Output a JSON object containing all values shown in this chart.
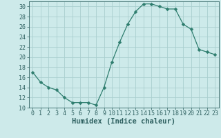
{
  "x": [
    0,
    1,
    2,
    3,
    4,
    5,
    6,
    7,
    8,
    9,
    10,
    11,
    12,
    13,
    14,
    15,
    16,
    17,
    18,
    19,
    20,
    21,
    22,
    23
  ],
  "y": [
    17,
    15,
    14,
    13.5,
    12,
    11,
    11,
    11,
    10.5,
    14,
    19,
    23,
    26.5,
    29,
    30.5,
    30.5,
    30,
    29.5,
    29.5,
    26.5,
    25.5,
    21.5,
    21,
    20.5
  ],
  "line_color": "#2e7d6e",
  "marker": "D",
  "marker_size": 2.5,
  "bg_color": "#cdeaea",
  "grid_color": "#aacfcf",
  "xlabel": "Humidex (Indice chaleur)",
  "xlim": [
    -0.5,
    23.5
  ],
  "ylim": [
    10,
    31
  ],
  "yticks": [
    10,
    12,
    14,
    16,
    18,
    20,
    22,
    24,
    26,
    28,
    30
  ],
  "xticks": [
    0,
    1,
    2,
    3,
    4,
    5,
    6,
    7,
    8,
    9,
    10,
    11,
    12,
    13,
    14,
    15,
    16,
    17,
    18,
    19,
    20,
    21,
    22,
    23
  ],
  "tick_color": "#2e6060",
  "label_fontsize": 6,
  "xlabel_fontsize": 7.5
}
